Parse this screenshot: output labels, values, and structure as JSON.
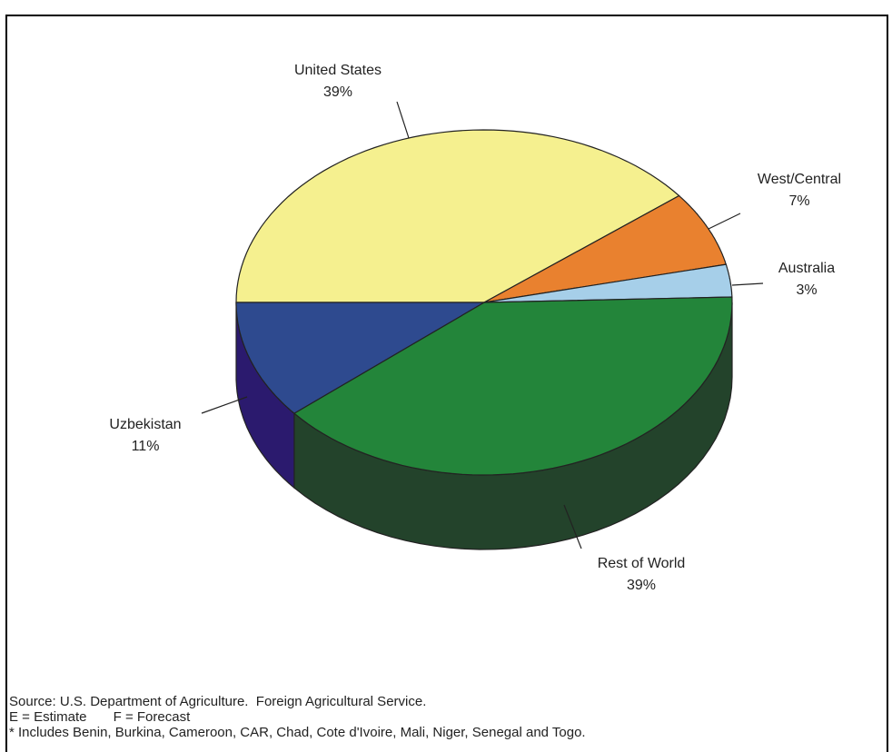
{
  "header": {
    "partial_title": ""
  },
  "chart_data": {
    "type": "pie",
    "title": "",
    "slices": [
      {
        "label": "United States",
        "value": 39,
        "percent_label": "39%",
        "color": "#f5f08f",
        "side_color": "#c8c46a"
      },
      {
        "label": "West/Central",
        "value": 7,
        "percent_label": "7%",
        "color": "#e9812f",
        "side_color": "#b15b1a"
      },
      {
        "label": "Australia",
        "value": 3,
        "percent_label": "3%",
        "color": "#a6cfe9",
        "side_color": "#5d8aa8"
      },
      {
        "label": "Rest of World",
        "value": 39,
        "percent_label": "39%",
        "color": "#23853a",
        "side_color": "#23432b"
      },
      {
        "label": "Uzbekistan",
        "value": 11,
        "percent_label": "11%",
        "color": "#2e4a8f",
        "side_color": "#2b1a6e"
      }
    ]
  },
  "notes": {
    "source": "Source: U.S. Department of Agriculture.  Foreign Agricultural Service.",
    "legend_codes": "E = Estimate       F = Forecast",
    "footnote": "* Includes Benin, Burkina, Cameroon, CAR, Chad, Cote d'Ivoire, Mali, Niger, Senegal and Togo."
  }
}
